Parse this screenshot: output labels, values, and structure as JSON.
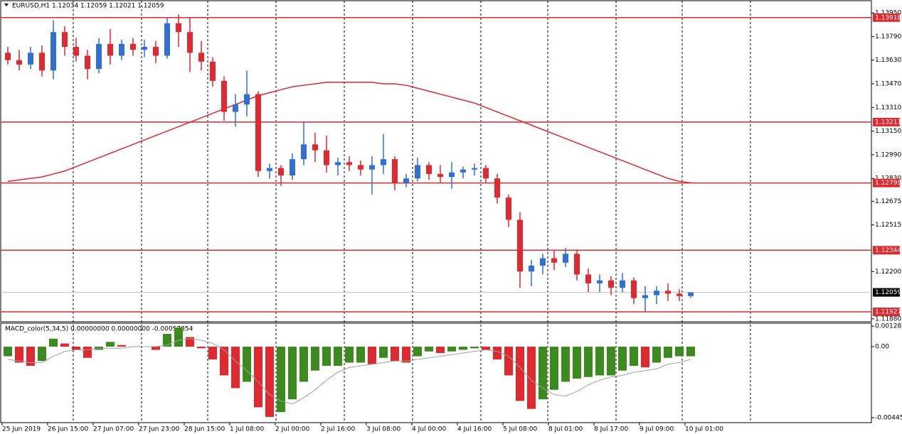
{
  "chart_data": [
    {
      "type": "candlestick",
      "title": "EURUSD,H1  1.12034 1.12059 1.12021 1.12059",
      "categories": [
        "25 Jun 2019",
        null,
        null,
        null,
        "26 Jun 15:00",
        null,
        null,
        null,
        "27 Jun 07:00",
        null,
        null,
        null,
        "27 Jun 23:00",
        null,
        null,
        null,
        "28 Jun 15:00",
        null,
        null,
        null,
        "1 Jul 08:00",
        null,
        null,
        null,
        "2 Jul 00:00",
        null,
        null,
        null,
        "2 Jul 16:00",
        null,
        null,
        null,
        "3 Jul 08:00",
        null,
        null,
        null,
        "4 Jul 00:00",
        null,
        null,
        null,
        "4 Jul 16:00",
        null,
        null,
        null,
        "5 Jul 08:00",
        null,
        null,
        null,
        "8 Jul 01:00",
        null,
        null,
        null,
        "8 Jul 17:00",
        null,
        null,
        null,
        "9 Jul 09:00",
        null,
        null,
        null,
        "10 Jul 01:00"
      ],
      "open": [
        1.1368,
        1.1363,
        1.136,
        1.1368,
        1.1356,
        1.1382,
        1.1372,
        1.1366,
        1.1357,
        1.1374,
        1.1366,
        1.1374,
        1.137,
        1.1372,
        1.1366,
        1.1388,
        1.1382,
        1.1368,
        1.1362,
        1.1349,
        1.1328,
        1.1333,
        1.134,
        1.1288,
        1.129,
        1.1285,
        1.1296,
        1.1306,
        1.1302,
        1.1292,
        1.1294,
        1.1292,
        1.1289,
        1.1292,
        1.1296,
        1.128,
        1.1283,
        1.1292,
        1.1286,
        1.1284,
        1.1287,
        1.1289,
        1.129,
        1.1283,
        1.127,
        1.1255,
        1.122,
        1.1224,
        1.1229,
        1.1226,
        1.1232,
        1.1218,
        1.1212,
        1.1214,
        1.1209,
        1.1214,
        1.1202,
        1.1204,
        1.1207,
        1.1205,
        1.12034
      ],
      "high": [
        1.1372,
        1.137,
        1.1372,
        1.1373,
        1.139,
        1.1386,
        1.1378,
        1.137,
        1.1378,
        1.1384,
        1.1377,
        1.1378,
        1.1377,
        1.1376,
        1.1392,
        1.1394,
        1.1392,
        1.1376,
        1.1365,
        1.1352,
        1.134,
        1.1356,
        1.1342,
        1.1293,
        1.1292,
        1.13,
        1.1321,
        1.1314,
        1.1312,
        1.1297,
        1.1298,
        1.1295,
        1.1298,
        1.1313,
        1.1298,
        1.1286,
        1.1297,
        1.1294,
        1.1292,
        1.1294,
        1.1291,
        1.1293,
        1.1292,
        1.1286,
        1.1272,
        1.126,
        1.1228,
        1.1232,
        1.1234,
        1.1236,
        1.1235,
        1.1222,
        1.1218,
        1.1217,
        1.1219,
        1.1216,
        1.121,
        1.121,
        1.1212,
        1.1208,
        1.12059
      ],
      "low": [
        1.136,
        1.1356,
        1.1357,
        1.1352,
        1.135,
        1.1366,
        1.1362,
        1.135,
        1.1354,
        1.136,
        1.1363,
        1.1366,
        1.1365,
        1.1361,
        1.1364,
        1.1372,
        1.1355,
        1.1356,
        1.1345,
        1.1322,
        1.1318,
        1.1325,
        1.1284,
        1.1283,
        1.1278,
        1.1282,
        1.1292,
        1.1294,
        1.1287,
        1.1285,
        1.1288,
        1.1285,
        1.1272,
        1.1286,
        1.1275,
        1.1277,
        1.1281,
        1.1282,
        1.128,
        1.1276,
        1.1283,
        1.1285,
        1.128,
        1.1266,
        1.125,
        1.1209,
        1.121,
        1.1218,
        1.1221,
        1.1223,
        1.1214,
        1.1206,
        1.1206,
        1.1204,
        1.1206,
        1.1198,
        1.1193,
        1.1198,
        1.12,
        1.12,
        1.12021
      ],
      "close": [
        1.1363,
        1.136,
        1.1368,
        1.1356,
        1.1382,
        1.1372,
        1.1366,
        1.1357,
        1.1374,
        1.1366,
        1.1374,
        1.137,
        1.1372,
        1.1366,
        1.1388,
        1.1382,
        1.1368,
        1.1362,
        1.1349,
        1.1328,
        1.1333,
        1.134,
        1.1288,
        1.129,
        1.1285,
        1.1296,
        1.1306,
        1.1302,
        1.1292,
        1.1294,
        1.1292,
        1.1289,
        1.1292,
        1.1296,
        1.128,
        1.1283,
        1.1292,
        1.1286,
        1.1284,
        1.1287,
        1.1289,
        1.129,
        1.1283,
        1.127,
        1.1255,
        1.122,
        1.1224,
        1.1229,
        1.1226,
        1.1232,
        1.1218,
        1.1212,
        1.1214,
        1.1209,
        1.1214,
        1.1202,
        1.1204,
        1.1207,
        1.1205,
        1.12034,
        1.12059
      ],
      "up_color": "#2f6fd6",
      "down_color": "#e0282f",
      "ma": {
        "color": "#e0282f",
        "values": [
          1.1281,
          1.1282,
          1.1283,
          1.1284,
          1.1286,
          1.1288,
          1.1291,
          1.1294,
          1.1297,
          1.13,
          1.1303,
          1.1306,
          1.1309,
          1.1312,
          1.1315,
          1.1318,
          1.1321,
          1.1324,
          1.1327,
          1.133,
          1.1333,
          1.1336,
          1.1339,
          1.1341,
          1.1343,
          1.1345,
          1.1346,
          1.1347,
          1.1348,
          1.1348,
          1.1348,
          1.1348,
          1.1348,
          1.1347,
          1.1347,
          1.1346,
          1.1344,
          1.1342,
          1.134,
          1.1338,
          1.1336,
          1.1334,
          1.1331,
          1.1328,
          1.1325,
          1.1322,
          1.1319,
          1.1316,
          1.1313,
          1.131,
          1.1307,
          1.1304,
          1.1301,
          1.1298,
          1.1295,
          1.1292,
          1.1289,
          1.1286,
          1.1283,
          1.1281,
          1.128
        ]
      },
      "levels": [
        1.13918,
        1.13211,
        1.12799,
        1.12344,
        1.11927
      ],
      "level_color": "#e0282f",
      "current_price": 1.12059,
      "ylim": [
        1.1186,
        1.14037
      ],
      "yticks": [
        {
          "value": 1.1395,
          "label": "1.13950"
        },
        {
          "value": 1.1379,
          "label": "1.13790"
        },
        {
          "value": 1.1363,
          "label": "1.13630"
        },
        {
          "value": 1.1347,
          "label": "1.13470"
        },
        {
          "value": 1.1331,
          "label": "1.13310"
        },
        {
          "value": 1.1315,
          "label": "1.13150"
        },
        {
          "value": 1.1299,
          "label": "1.12990"
        },
        {
          "value": 1.1283,
          "label": "1.12830"
        },
        1.12675,
        1.12515,
        {
          "value": 1.122,
          "label": "1.12200"
        },
        {
          "value": 1.1188,
          "label": "1.11880"
        }
      ]
    },
    {
      "type": "macd",
      "title": "MACD_color(5,34,5) 0.00000000 0.00000000 -0.00057854",
      "values": [
        -0.0006,
        -0.001,
        -0.0012,
        -0.0009,
        0.0005,
        0.0002,
        -0.0002,
        -0.0007,
        -0.0002,
        0.0003,
        0.0001,
        0.0,
        0.0,
        -0.0002,
        0.0008,
        0.0012,
        0.0006,
        -0.0001,
        -0.0008,
        -0.0018,
        -0.0026,
        -0.0022,
        -0.0038,
        -0.0044,
        -0.0041,
        -0.0033,
        -0.0022,
        -0.0015,
        -0.0012,
        -0.0012,
        -0.001,
        -0.001,
        -0.0011,
        -0.0007,
        -0.0009,
        -0.001,
        -0.0006,
        -0.0003,
        -0.0004,
        -0.0003,
        -0.0002,
        -0.0001,
        -0.0002,
        -0.0008,
        -0.0018,
        -0.0034,
        -0.0039,
        -0.0033,
        -0.0027,
        -0.0022,
        -0.002,
        -0.0019,
        -0.0018,
        -0.0018,
        -0.0015,
        -0.0012,
        -0.0013,
        -0.001,
        -0.0007,
        -0.0006,
        -0.0006
      ],
      "signal": [
        -0.0008,
        -0.0009,
        -0.001,
        -0.001,
        -0.0006,
        -0.0003,
        -0.0002,
        -0.0002,
        -0.0001,
        -0.0001,
        -0.0001,
        0.0,
        0.0,
        0.0,
        0.0001,
        0.0004,
        0.0005,
        0.0004,
        0.0002,
        -0.0002,
        -0.0009,
        -0.0015,
        -0.0022,
        -0.003,
        -0.0034,
        -0.0036,
        -0.0032,
        -0.0027,
        -0.0021,
        -0.0016,
        -0.0013,
        -0.0012,
        -0.0011,
        -0.001,
        -0.0009,
        -0.0009,
        -0.0008,
        -0.0007,
        -0.0006,
        -0.0005,
        -0.0004,
        -0.0003,
        -0.0002,
        -0.0003,
        -0.0006,
        -0.0013,
        -0.0021,
        -0.0026,
        -0.003,
        -0.0031,
        -0.0028,
        -0.0024,
        -0.0021,
        -0.0019,
        -0.0018,
        -0.0016,
        -0.0015,
        -0.0014,
        -0.0011,
        -0.001,
        -0.0008
      ],
      "up_color": "#3a8a1e",
      "down_color": "#e0282f",
      "signal_color": "#a0a0a0",
      "ylim": [
        -0.00476,
        0.00147
      ],
      "yticks": [
        0.001283,
        {
          "value": 0,
          "label": "0.00"
        },
        -0.00445
      ]
    }
  ]
}
